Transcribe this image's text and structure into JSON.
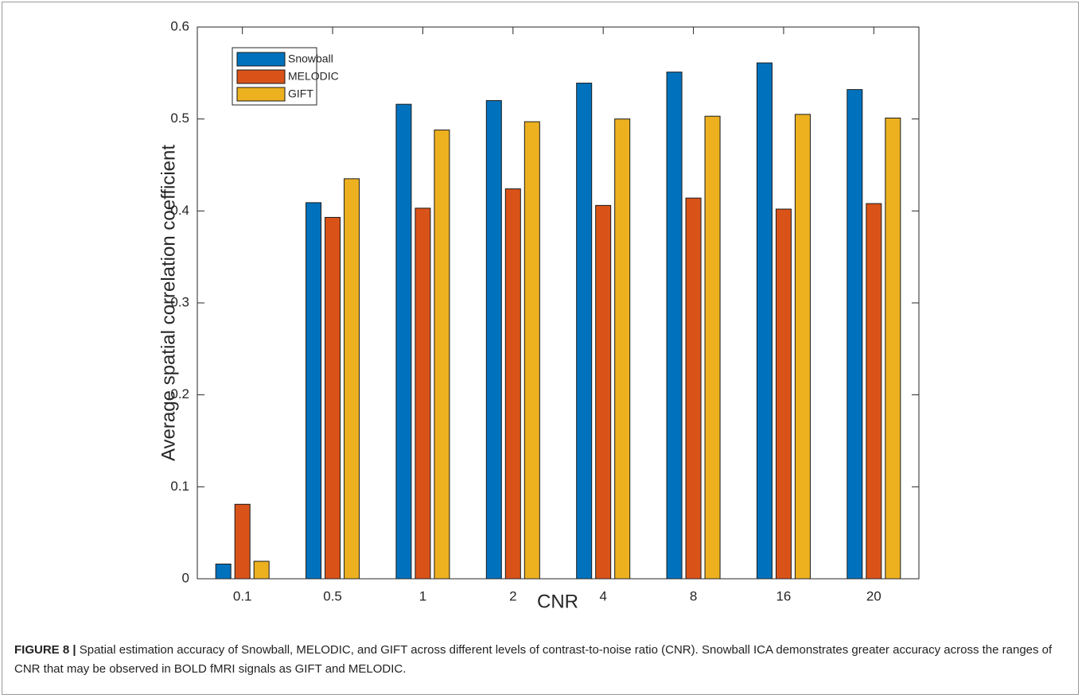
{
  "chart_data": {
    "type": "bar",
    "ylabel": "Average spatial correlation coefficient",
    "xlabel": "CNR",
    "categories": [
      "0.1",
      "0.5",
      "1",
      "2",
      "4",
      "8",
      "16",
      "20"
    ],
    "series": [
      {
        "name": "Snowball",
        "color": "#0072bd",
        "values": [
          0.016,
          0.409,
          0.516,
          0.52,
          0.539,
          0.551,
          0.561,
          0.532
        ]
      },
      {
        "name": "MELODIC",
        "color": "#d95319",
        "values": [
          0.081,
          0.393,
          0.403,
          0.424,
          0.406,
          0.414,
          0.402,
          0.408
        ]
      },
      {
        "name": "GIFT",
        "color": "#edb120",
        "values": [
          0.019,
          0.435,
          0.488,
          0.497,
          0.5,
          0.503,
          0.505,
          0.501
        ]
      }
    ],
    "ylim": [
      0,
      0.6
    ],
    "yticks": [
      0,
      0.1,
      0.2,
      0.3,
      0.4,
      0.5,
      0.6
    ],
    "legend": "upper-left",
    "caption": {
      "label": "FIGURE 8 |",
      "text": "Spatial estimation accuracy of Snowball, MELODIC, and GIFT across different levels of contrast-to-noise ratio (CNR). Snowball ICA demonstrates greater accuracy across the ranges of CNR that may be observed in BOLD fMRI signals as GIFT and MELODIC."
    }
  }
}
